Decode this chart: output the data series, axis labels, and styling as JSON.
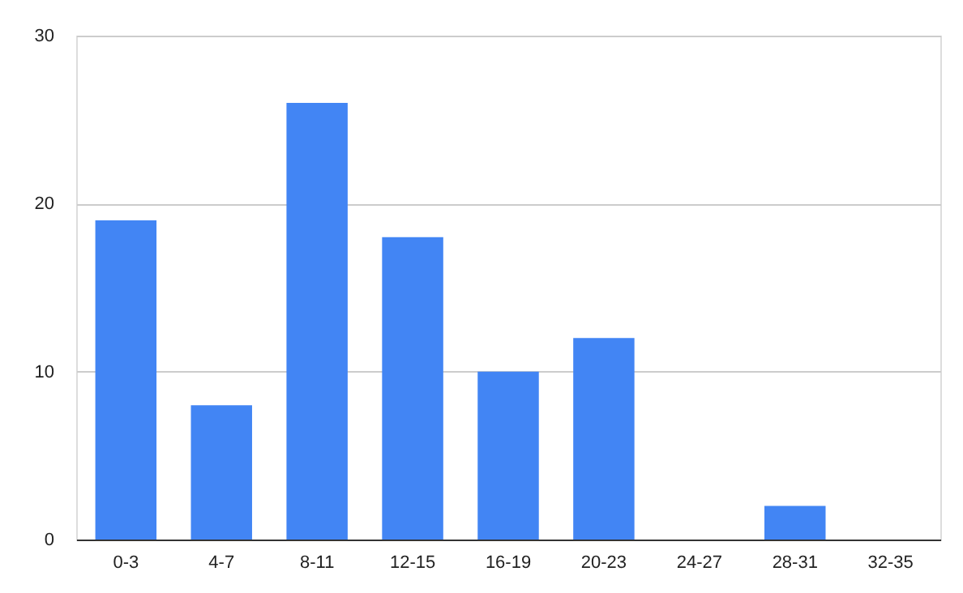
{
  "chart_data": {
    "type": "bar",
    "categories": [
      "0-3",
      "4-7",
      "8-11",
      "12-15",
      "16-19",
      "20-23",
      "24-27",
      "28-31",
      "32-35"
    ],
    "values": [
      19,
      8,
      26,
      18,
      10,
      12,
      0,
      2,
      0
    ],
    "color": "#4285f4",
    "ylim": [
      0,
      30
    ],
    "yticks": [
      0,
      10,
      20,
      30
    ],
    "grid": "y"
  }
}
